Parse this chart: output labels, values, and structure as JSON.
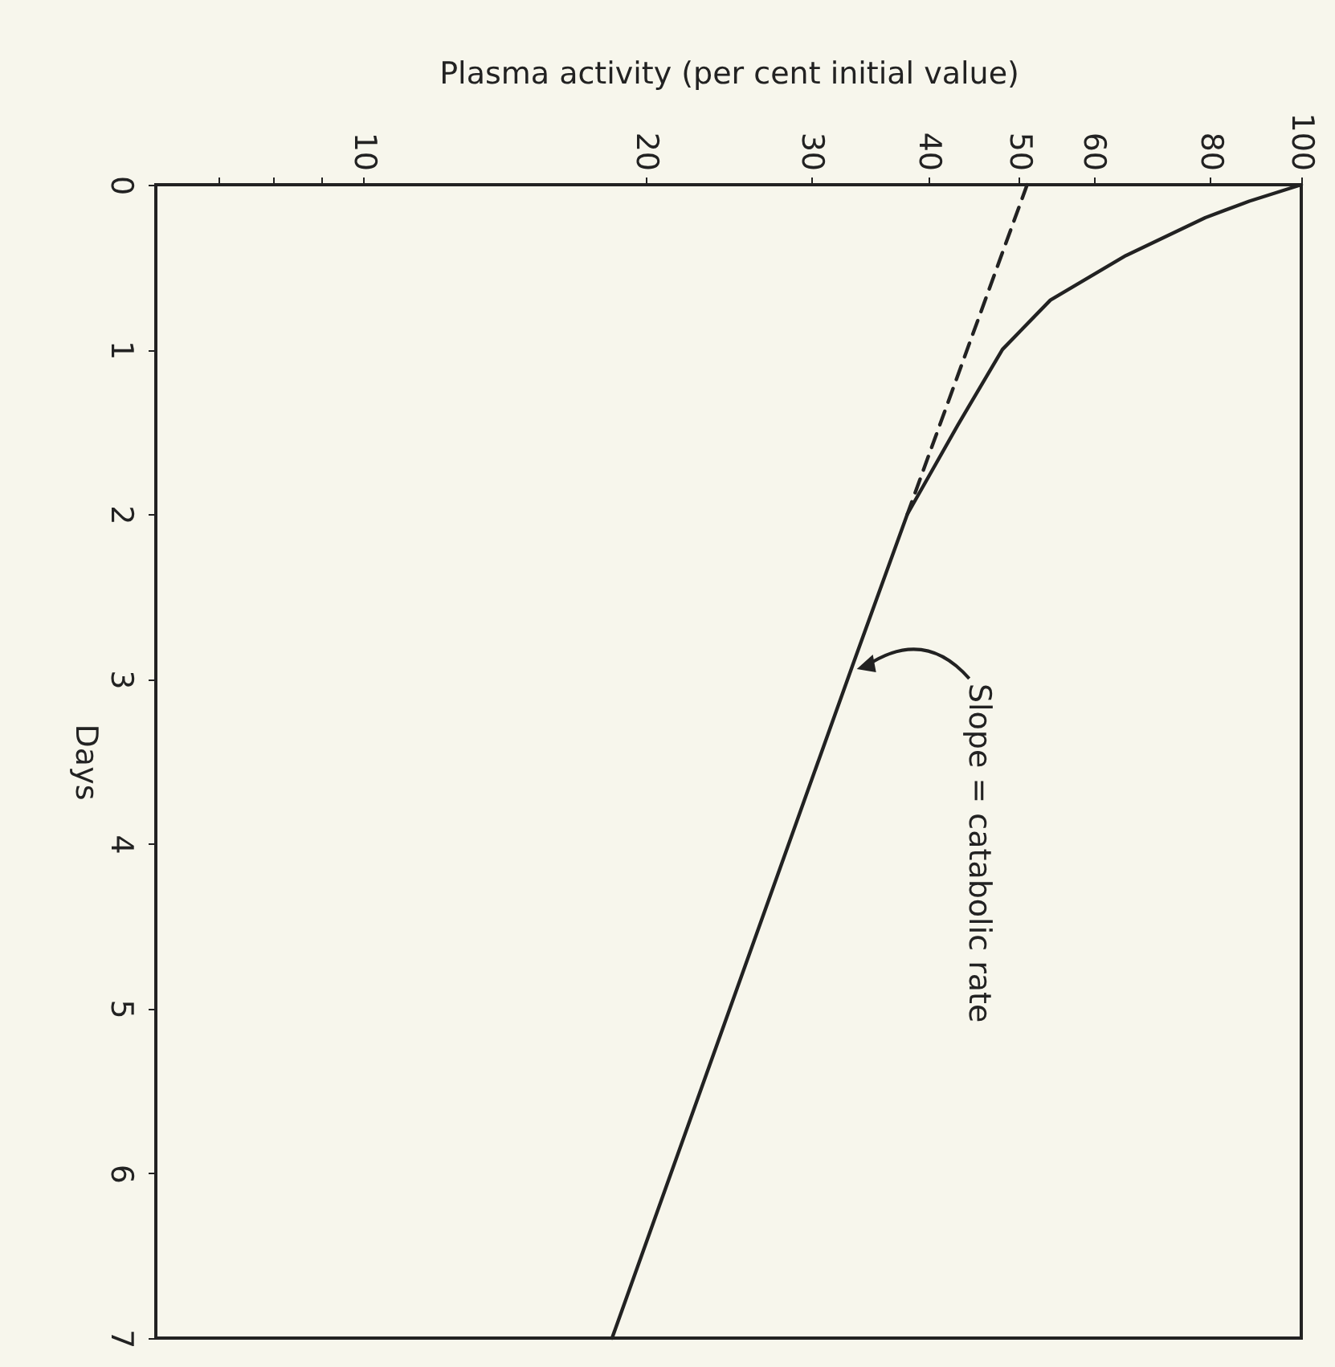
{
  "chart_data": {
    "type": "line",
    "xlabel": "Plasma activity (per cent initial value)",
    "ylabel": "Days",
    "series": [
      {
        "color": "#222222",
        "line_style": "solid",
        "x": [
          100,
          88,
          79,
          65,
          54,
          48,
          43,
          38,
          33.3,
          18.4
        ],
        "values": [
          0,
          0.1,
          0.2,
          0.43,
          0.7,
          1,
          1.46,
          2,
          2.9,
          7
        ]
      },
      {
        "color": "#222222",
        "line_style": "dashed",
        "x": [
          51,
          38
        ],
        "values": [
          0,
          2
        ]
      }
    ],
    "xlim": [
      6,
      100
    ],
    "xticks": [
      {
        "value": 7,
        "label": null
      },
      {
        "value": 8,
        "label": null
      },
      {
        "value": 9,
        "label": null
      },
      10,
      20,
      30,
      40,
      50,
      60,
      80,
      100
    ],
    "ylim": [
      7,
      0
    ],
    "yticks": [
      0,
      1,
      2,
      3,
      4,
      5,
      6,
      7
    ],
    "log": "x",
    "grid": false,
    "annotations": [
      {
        "text": "Slope = catabolic rate",
        "x": 33.3,
        "y": 2.9
      }
    ]
  }
}
